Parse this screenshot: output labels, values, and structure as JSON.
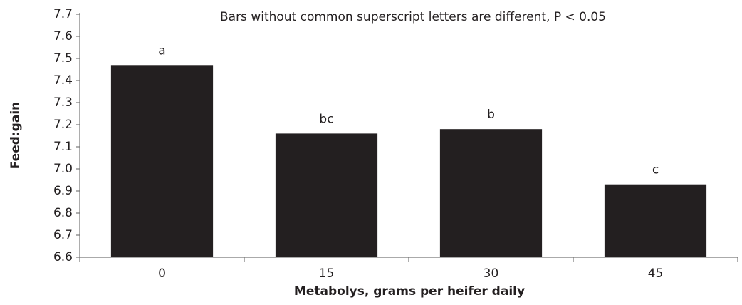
{
  "chart_data": {
    "type": "bar",
    "title": "Bars without common superscript letters are different, P < 0.05",
    "x_label": "Metabolys, grams per heifer daily",
    "y_label": "Feed:gain",
    "categories": [
      "0",
      "15",
      "30",
      "45"
    ],
    "values": [
      7.47,
      7.16,
      7.18,
      6.93
    ],
    "annotations": [
      "a",
      "bc",
      "b",
      "c"
    ],
    "color": "#231f20",
    "ylim": [
      6.6,
      7.7
    ],
    "yticks": [
      6.6,
      6.7,
      6.8,
      6.9,
      {
        "value": 7,
        "label": "7.0"
      },
      7.1,
      7.2,
      7.3,
      7.4,
      7.5,
      7.6,
      7.7
    ],
    "grid": false
  }
}
